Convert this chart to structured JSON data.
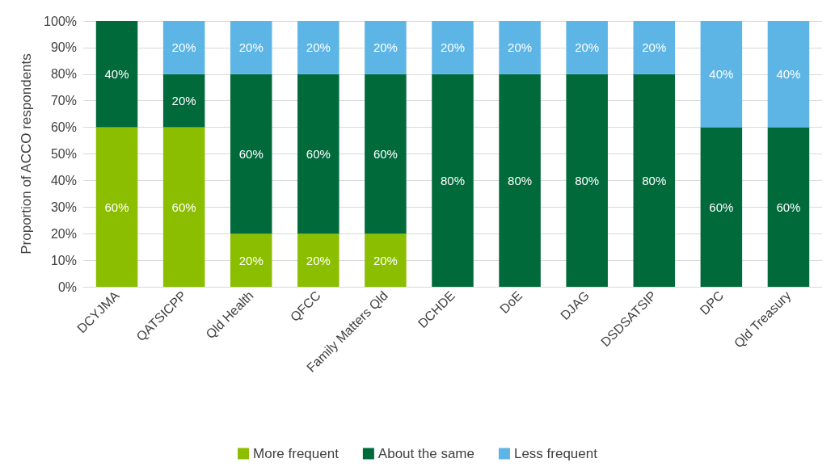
{
  "chart_data": {
    "type": "bar",
    "stacked": true,
    "ylabel": "Proportion of ACCO respondents",
    "categories": [
      "DCYJMA",
      "QATSICPP",
      "Qld Health",
      "QFCC",
      "Family Matters Qld",
      "DCHDE",
      "DoE",
      "DJAG",
      "DSDSATSIP",
      "DPC",
      "Qld Treasury"
    ],
    "series": [
      {
        "name": "More frequent",
        "color": "#8cbe00",
        "values": [
          60,
          60,
          20,
          20,
          20,
          0,
          0,
          0,
          0,
          0,
          0
        ],
        "value_labels": [
          "60%",
          "60%",
          "20%",
          "20%",
          "20%",
          null,
          null,
          null,
          null,
          null,
          null
        ]
      },
      {
        "name": "About the same",
        "color": "#006a3b",
        "values": [
          40,
          20,
          60,
          60,
          60,
          80,
          80,
          80,
          80,
          60,
          60
        ],
        "value_labels": [
          "40%",
          "20%",
          "60%",
          "60%",
          "60%",
          "80%",
          "80%",
          "80%",
          "80%",
          "60%",
          "60%"
        ]
      },
      {
        "name": "Less frequent",
        "color": "#5db5e6",
        "values": [
          0,
          20,
          20,
          20,
          20,
          20,
          20,
          20,
          20,
          40,
          40
        ],
        "value_labels": [
          null,
          "20%",
          "20%",
          "20%",
          "20%",
          "20%",
          "20%",
          "20%",
          "20%",
          "40%",
          "40%"
        ]
      }
    ],
    "ylim": [
      0,
      100
    ],
    "yticks": [
      {
        "value": 0,
        "label": "0%"
      },
      {
        "value": 10,
        "label": "10%"
      },
      {
        "value": 20,
        "label": "20%"
      },
      {
        "value": 30,
        "label": "30%"
      },
      {
        "value": 40,
        "label": "40%"
      },
      {
        "value": 50,
        "label": "50%"
      },
      {
        "value": 60,
        "label": "60%"
      },
      {
        "value": 70,
        "label": "70%"
      },
      {
        "value": 80,
        "label": "80%"
      },
      {
        "value": 90,
        "label": "90%"
      },
      {
        "value": 100,
        "label": "100%"
      }
    ],
    "grid": "y",
    "legend": "bottom"
  }
}
